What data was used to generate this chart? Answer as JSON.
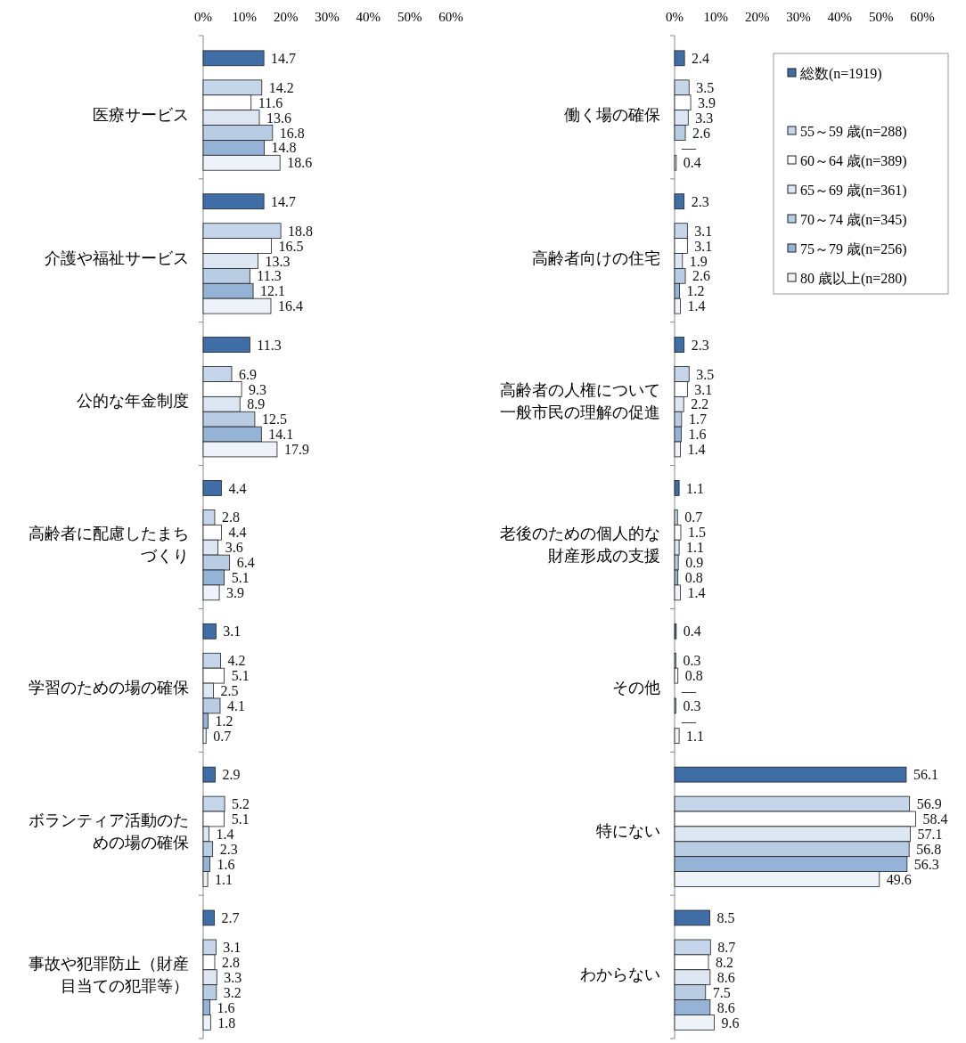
{
  "chart_data": [
    {
      "type": "bar",
      "orientation": "horizontal",
      "categories": [
        "医療サービス",
        "介護や福祉サービス",
        "公的な年金制度",
        "高齢者に配慮したまちづくり",
        "学習のための場の確保",
        "ボランティア活動のための場の確保",
        "事故や犯罪防止（財産目当ての犯罪等）"
      ],
      "xlim": [
        0,
        60
      ],
      "xticks": [
        {
          "value": 0,
          "label": "0%"
        },
        {
          "value": 10,
          "label": "10%"
        },
        {
          "value": 20,
          "label": "20%"
        },
        {
          "value": 30,
          "label": "30%"
        },
        {
          "value": 40,
          "label": "40%"
        },
        {
          "value": 50,
          "label": "50%"
        },
        {
          "value": 60,
          "label": "60%"
        }
      ],
      "data_labels": true,
      "legend": false,
      "series": [
        {
          "color": "#3f6ea6",
          "values": [
            14.7,
            14.7,
            11.3,
            4.4,
            3.1,
            2.9,
            2.7
          ]
        },
        {
          "color": "#c6d6ea",
          "values": [
            14.2,
            18.8,
            6.9,
            2.8,
            4.2,
            5.2,
            3.1
          ]
        },
        {
          "color": "#ffffff",
          "values": [
            11.6,
            16.5,
            9.3,
            4.4,
            5.1,
            5.1,
            2.8
          ]
        },
        {
          "color": "#dde7f3",
          "values": [
            13.6,
            13.3,
            8.9,
            3.6,
            2.5,
            1.4,
            3.3
          ]
        },
        {
          "color": "#b8cce4",
          "values": [
            16.8,
            11.3,
            12.5,
            6.4,
            4.1,
            2.3,
            3.2
          ]
        },
        {
          "color": "#95b3d7",
          "values": [
            14.8,
            12.1,
            14.1,
            5.1,
            1.2,
            1.6,
            1.6
          ]
        },
        {
          "color": "#eef3fa",
          "values": [
            18.6,
            16.4,
            17.9,
            3.9,
            0.7,
            1.1,
            1.8
          ]
        }
      ]
    },
    {
      "type": "bar",
      "orientation": "horizontal",
      "categories": [
        "働く場の確保",
        "高齢者向けの住宅",
        "高齢者の人権について一般市民の理解の促進",
        "老後のための個人的な財産形成の支援",
        "その他",
        "特にない",
        "わからない"
      ],
      "xlim": [
        0,
        60
      ],
      "xticks": [
        {
          "value": 0,
          "label": "0%"
        },
        {
          "value": 10,
          "label": "10%"
        },
        {
          "value": 20,
          "label": "20%"
        },
        {
          "value": 30,
          "label": "30%"
        },
        {
          "value": 40,
          "label": "40%"
        },
        {
          "value": 50,
          "label": "50%"
        },
        {
          "value": 60,
          "label": "60%"
        }
      ],
      "data_labels": true,
      "legend": "top right",
      "series": [
        {
          "name": "総数(n=1919)",
          "color": "#3f6ea6",
          "values": [
            2.4,
            2.3,
            2.3,
            1.1,
            0.4,
            56.1,
            8.5
          ]
        },
        {
          "name": "55～59 歳(n=288)",
          "color": "#c6d6ea",
          "values": [
            3.5,
            3.1,
            3.5,
            0.7,
            0.3,
            56.9,
            8.7
          ]
        },
        {
          "name": "60～64 歳(n=389)",
          "color": "#ffffff",
          "values": [
            3.9,
            3.1,
            3.1,
            1.5,
            0.8,
            58.4,
            8.2
          ]
        },
        {
          "name": "65～69 歳(n=361)",
          "color": "#dde7f3",
          "values": [
            3.3,
            1.9,
            2.2,
            1.1,
            null,
            57.1,
            8.6
          ],
          "value_labels": [
            "3.3",
            "1.9",
            "2.2",
            "1.1",
            "—",
            "57.1",
            "8.6"
          ]
        },
        {
          "name": "70～74 歳(n=345)",
          "color": "#b8cce4",
          "values": [
            2.6,
            2.6,
            1.7,
            0.9,
            0.3,
            56.8,
            7.5
          ]
        },
        {
          "name": "75～79 歳(n=256)",
          "color": "#95b3d7",
          "values": [
            null,
            1.2,
            1.6,
            0.8,
            null,
            56.3,
            8.6
          ],
          "value_labels": [
            "—",
            "1.2",
            "1.6",
            "0.8",
            "—",
            "56.3",
            "8.6"
          ]
        },
        {
          "name": "80 歳以上(n=280)",
          "color": "#eef3fa",
          "values": [
            0.4,
            1.4,
            1.4,
            1.4,
            1.1,
            49.6,
            9.6
          ]
        }
      ]
    }
  ]
}
